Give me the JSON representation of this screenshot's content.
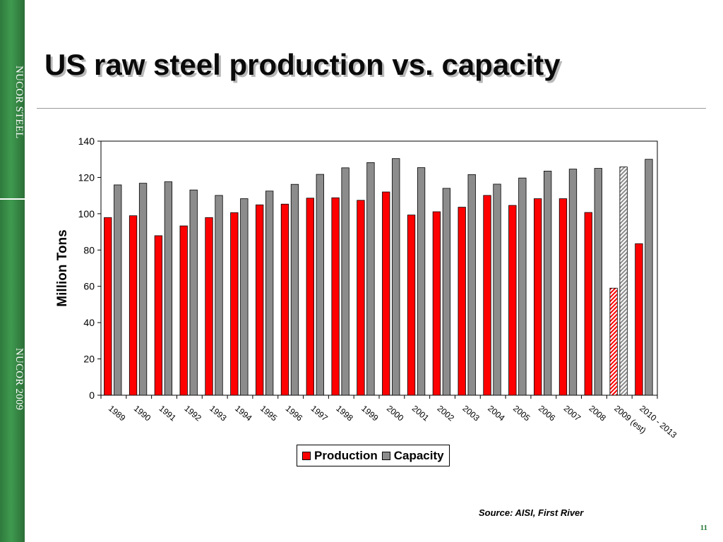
{
  "sidebar": {
    "top_text": "NUCOR STEEL",
    "bottom_text": "NUCOR 2009"
  },
  "slide": {
    "title": "US raw steel production vs. capacity",
    "source": "Source: AISI, First River",
    "page_number": "11"
  },
  "colors": {
    "production": "#ff0000",
    "capacity": "#8c8c8c",
    "sidebar_green": "#3a8f48",
    "estimate_pattern": "hatched"
  },
  "chart_data": {
    "type": "bar",
    "title": "",
    "xlabel": "",
    "ylabel": "Million Tons",
    "ylim": [
      0,
      140
    ],
    "yticks": [
      0,
      20,
      40,
      60,
      80,
      100,
      120,
      140
    ],
    "grid": false,
    "legend_position": "bottom",
    "categories": [
      "1989",
      "1990",
      "1991",
      "1992",
      "1993",
      "1994",
      "1995",
      "1996",
      "1997",
      "1998",
      "1999",
      "2000",
      "2001",
      "2002",
      "2003",
      "2004",
      "2005",
      "2006",
      "2007",
      "2008",
      "2009 (est)",
      "2010 - 2013"
    ],
    "series": [
      {
        "name": "Production",
        "color": "#ff0000",
        "values": [
          97.9,
          98.9,
          87.9,
          93.3,
          97.9,
          100.6,
          104.9,
          105.3,
          108.6,
          108.8,
          107.4,
          112.0,
          99.3,
          101.1,
          103.6,
          110.1,
          104.6,
          108.3,
          108.3,
          100.7,
          59.0,
          83.5
        ]
      },
      {
        "name": "Capacity",
        "color": "#8c8c8c",
        "values": [
          115.9,
          116.8,
          117.6,
          113.1,
          110.1,
          108.3,
          112.5,
          116.2,
          121.7,
          125.3,
          128.2,
          130.4,
          125.4,
          114.0,
          121.6,
          116.3,
          119.7,
          123.5,
          124.6,
          125.0,
          125.8,
          130.0
        ]
      }
    ],
    "hatched_categories": [
      "2009 (est)"
    ]
  },
  "legend": {
    "production_label": "Production",
    "capacity_label": "Capacity"
  }
}
